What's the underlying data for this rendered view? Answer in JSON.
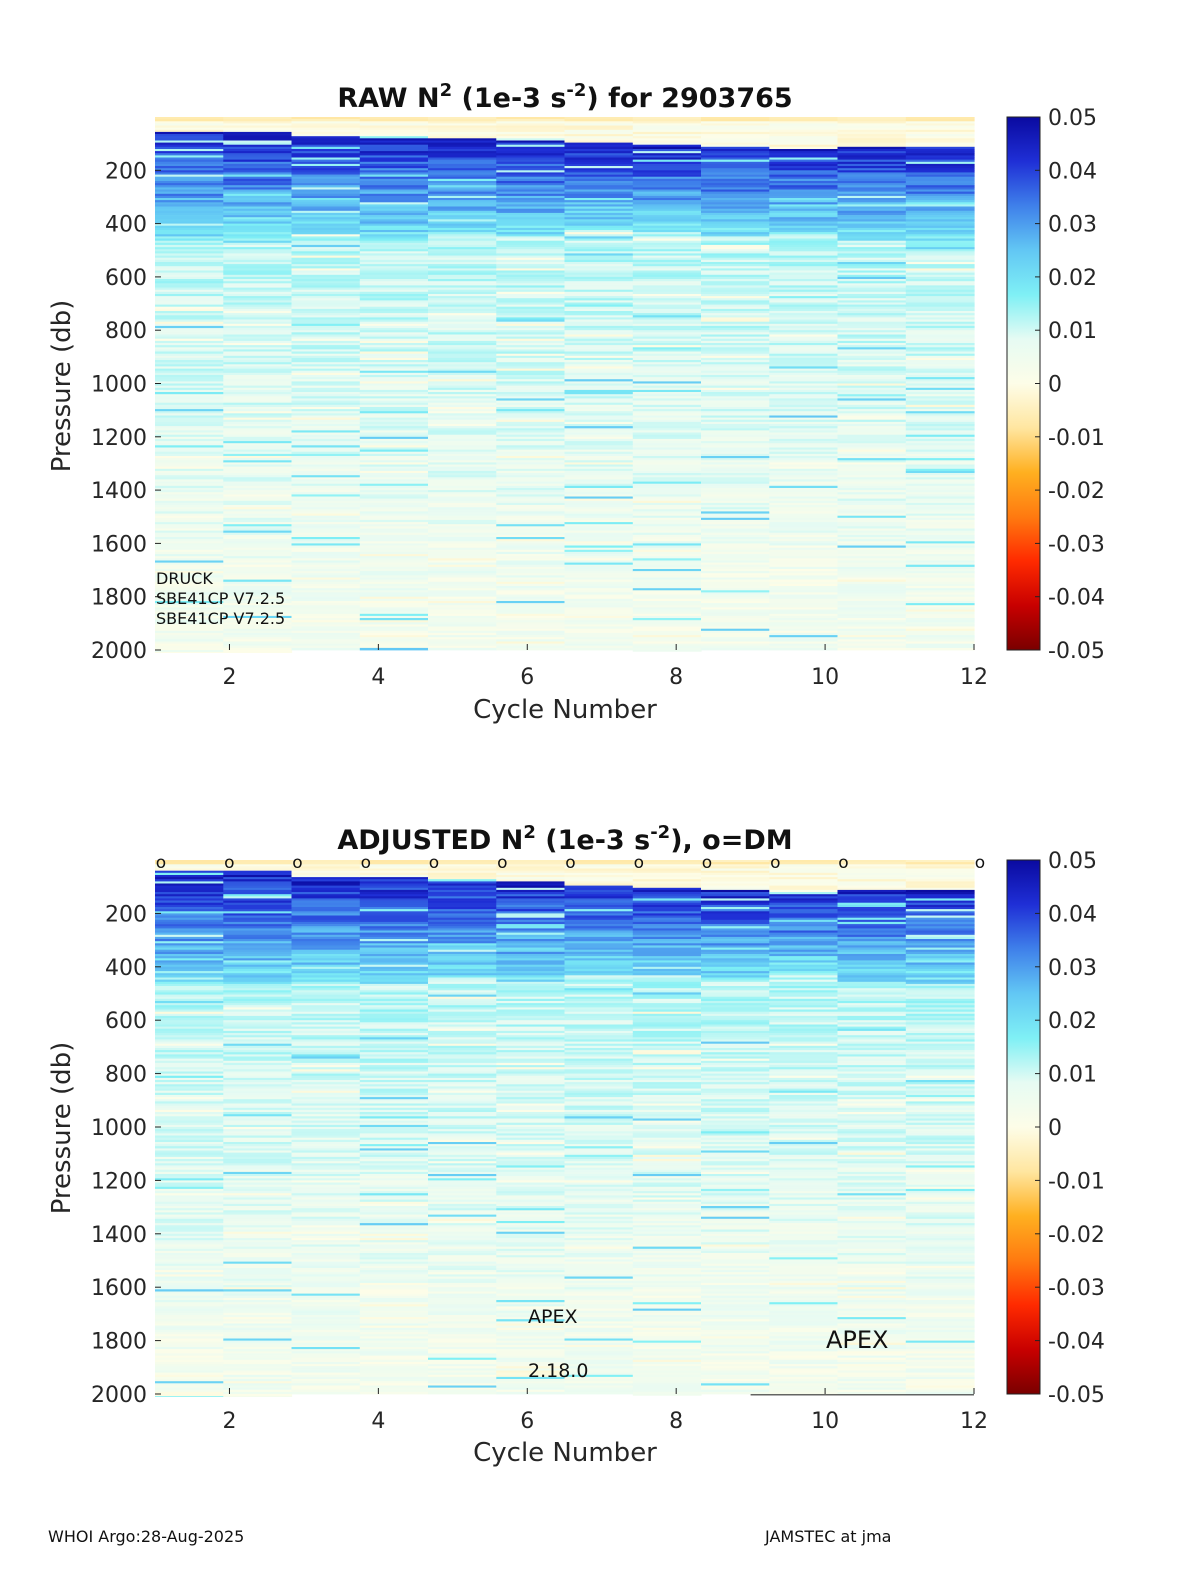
{
  "colors": {
    "scale": [
      "#7a0000",
      "#c80000",
      "#ff2a00",
      "#ff7a10",
      "#ffb020",
      "#ffe6a0",
      "#fdfde8",
      "#e6fbf3",
      "#7ff0f5",
      "#62c7f4",
      "#3f80ea",
      "#1f2fd6",
      "#0a0aa0"
    ],
    "frame": "#222222"
  },
  "chart_data": [
    {
      "type": "heatmap",
      "title_main": "RAW N",
      "title_sup": "2",
      "title_mid": " (1e-3 s",
      "title_sup2": "-2",
      "title_end": ") for 2903765",
      "xlabel": "Cycle Number",
      "ylabel": "Pressure (db)",
      "x": [
        1,
        2,
        3,
        4,
        5,
        6,
        7,
        8,
        9,
        10,
        11,
        12
      ],
      "xlim": [
        1,
        12
      ],
      "ylim": [
        0,
        2000
      ],
      "y_reversed": true,
      "xticks": [
        "2",
        "4",
        "6",
        "8",
        "10",
        "12"
      ],
      "yticks": [
        "200",
        "400",
        "600",
        "800",
        "1000",
        "1200",
        "1400",
        "1600",
        "1800",
        "2000"
      ],
      "colorbar": {
        "clim": [
          -0.05,
          0.05
        ],
        "ticks": [
          "0.05",
          "0.04",
          "0.03",
          "0.02",
          "0.01",
          "0",
          "-0.01",
          "-0.02",
          "-0.03",
          "-0.04",
          "-0.05"
        ]
      },
      "mixed_layer_bottom_db": [
        50,
        50,
        70,
        70,
        80,
        80,
        90,
        100,
        110,
        120,
        110,
        110
      ],
      "deep_strat_depth_db": [
        460,
        460,
        440,
        460,
        440,
        450,
        420,
        430,
        450,
        430,
        460,
        460
      ],
      "profile_bottom_db": [
        2010,
        2010,
        2000,
        2000,
        2000,
        2000,
        2000,
        2005,
        2000,
        2000,
        2000,
        2000
      ],
      "annotations": [
        "DRUCK",
        "SBE41CP V7.2.5",
        "SBE41CP V7.2.5"
      ],
      "dm_markers": []
    },
    {
      "type": "heatmap",
      "title_main": "ADJUSTED N",
      "title_sup": "2",
      "title_mid": " (1e-3 s",
      "title_sup2": "-2",
      "title_end": "), o=DM",
      "xlabel": "Cycle Number",
      "ylabel": "Pressure (db)",
      "x": [
        1,
        2,
        3,
        4,
        5,
        6,
        7,
        8,
        9,
        10,
        11,
        12
      ],
      "xlim": [
        1,
        12
      ],
      "ylim": [
        0,
        2000
      ],
      "y_reversed": true,
      "xticks": [
        "2",
        "4",
        "6",
        "8",
        "10",
        "12"
      ],
      "yticks": [
        "200",
        "400",
        "600",
        "800",
        "1000",
        "1200",
        "1400",
        "1600",
        "1800",
        "2000"
      ],
      "colorbar": {
        "clim": [
          -0.05,
          0.05
        ],
        "ticks": [
          "0.05",
          "0.04",
          "0.03",
          "0.02",
          "0.01",
          "0",
          "-0.01",
          "-0.02",
          "-0.03",
          "-0.04",
          "-0.05"
        ]
      },
      "mixed_layer_bottom_db": [
        40,
        40,
        60,
        60,
        70,
        80,
        90,
        100,
        110,
        120,
        110,
        110
      ],
      "deep_strat_depth_db": [
        470,
        470,
        450,
        460,
        440,
        450,
        430,
        430,
        450,
        430,
        460,
        460
      ],
      "profile_bottom_db": [
        2010,
        2010,
        2000,
        2000,
        2000,
        2000,
        2000,
        2005,
        2000,
        2000,
        2000,
        2000
      ],
      "annotations": [
        "APEX",
        "2.18.0",
        "APEX"
      ],
      "dm_markers": [
        1,
        2,
        3,
        4,
        5,
        6,
        7,
        8,
        9,
        10,
        11,
        12
      ]
    }
  ],
  "footer": {
    "left": "WHOI Argo:28-Aug-2025",
    "right": "JAMSTEC at jma"
  }
}
